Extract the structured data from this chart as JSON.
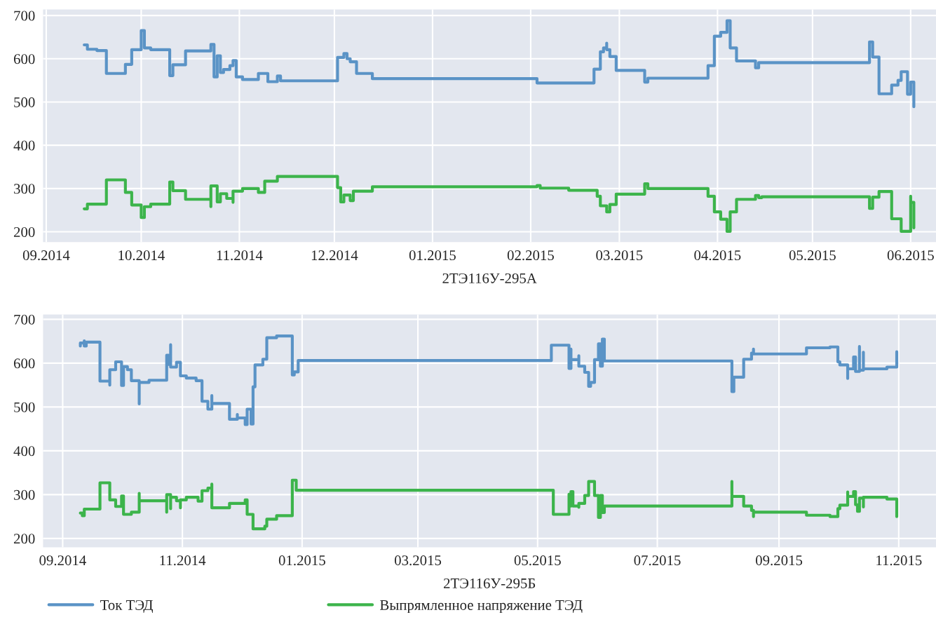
{
  "chart_data": [
    {
      "type": "step",
      "xlabel": "2ТЭ116У-295А",
      "grid": true,
      "legend": false,
      "xlim": [
        "2014-08-31",
        "2015-06-09"
      ],
      "ylim": [
        176,
        714
      ],
      "yticks": [
        200,
        300,
        400,
        500,
        600,
        700
      ],
      "xticks": [
        {
          "value": "2014-09-01",
          "label": "09.2014"
        },
        {
          "value": "2014-10-01",
          "label": "10.2014"
        },
        {
          "value": "2014-11-01",
          "label": "11.2014"
        },
        {
          "value": "2014-12-01",
          "label": "12.2014"
        },
        {
          "value": "2015-01-01",
          "label": "01.2015"
        },
        {
          "value": "2015-02-01",
          "label": "02.2015"
        },
        {
          "value": "2015-03-01",
          "label": "03.2015"
        },
        {
          "value": "2015-04-01",
          "label": "04.2015"
        },
        {
          "value": "2015-05-01",
          "label": "05.2015"
        },
        {
          "value": "2015-06-01",
          "label": "06.2015"
        }
      ],
      "series": [
        {
          "color": "#5a93c6",
          "x": [
            "2014-09-13",
            "2014-09-14",
            "2014-09-17",
            "2014-09-20",
            "2014-09-26",
            "2014-09-28",
            "2014-10-01",
            "2014-10-02",
            "2014-10-04",
            "2014-10-10",
            "2014-10-11",
            "2014-10-15",
            "2014-10-23",
            "2014-10-24",
            "2014-10-25",
            "2014-10-26",
            "2014-10-27",
            "2014-10-29",
            "2014-10-30",
            "2014-10-31",
            "2014-11-02",
            "2014-11-07",
            "2014-11-10",
            "2014-11-13",
            "2014-11-14",
            "2014-12-02",
            "2014-12-04",
            "2014-12-05",
            "2014-12-06",
            "2014-12-08",
            "2014-12-13",
            "2015-02-03",
            "2015-02-21",
            "2015-02-23",
            "2015-02-24",
            "2015-02-25",
            "2015-02-25",
            "2015-02-26",
            "2015-02-28",
            "2015-03-09",
            "2015-03-10",
            "2015-03-29",
            "2015-03-31",
            "2015-04-02",
            "2015-04-04",
            "2015-04-05",
            "2015-04-07",
            "2015-04-13",
            "2015-04-14",
            "2015-05-19",
            "2015-05-20",
            "2015-05-22",
            "2015-05-26",
            "2015-05-28",
            "2015-05-29",
            "2015-05-31",
            "2015-06-01",
            "2015-06-02"
          ],
          "values": [
            632,
            622,
            619,
            566,
            587,
            621,
            665,
            625,
            621,
            561,
            586,
            618,
            633,
            558,
            607,
            568,
            575,
            584,
            596,
            558,
            552,
            566,
            547,
            560,
            549,
            603,
            612,
            600,
            593,
            566,
            554,
            544,
            576,
            616,
            625,
            636,
            621,
            605,
            573,
            546,
            555,
            584,
            652,
            661,
            688,
            625,
            595,
            579,
            591,
            639,
            604,
            519,
            539,
            550,
            570,
            518,
            546,
            489
          ]
        },
        {
          "color": "#3cb44b",
          "x": [
            "2014-09-13",
            "2014-09-14",
            "2014-09-20",
            "2014-09-26",
            "2014-09-28",
            "2014-10-01",
            "2014-10-02",
            "2014-10-04",
            "2014-10-10",
            "2014-10-11",
            "2014-10-15",
            "2014-10-23",
            "2014-10-23",
            "2014-10-25",
            "2014-10-26",
            "2014-10-28",
            "2014-10-30",
            "2014-10-30",
            "2014-11-02",
            "2014-11-07",
            "2014-11-09",
            "2014-11-13",
            "2014-12-02",
            "2014-12-03",
            "2014-12-04",
            "2014-12-06",
            "2014-12-07",
            "2014-12-13",
            "2015-02-03",
            "2015-02-04",
            "2015-02-13",
            "2015-02-22",
            "2015-02-23",
            "2015-02-25",
            "2015-02-26",
            "2015-02-28",
            "2015-03-09",
            "2015-03-10",
            "2015-03-29",
            "2015-03-31",
            "2015-04-02",
            "2015-04-04",
            "2015-04-05",
            "2015-04-07",
            "2015-04-13",
            "2015-04-14",
            "2015-04-15",
            "2015-05-19",
            "2015-05-20",
            "2015-05-22",
            "2015-05-26",
            "2015-05-29",
            "2015-06-01",
            "2015-06-01",
            "2015-06-02"
          ],
          "values": [
            253,
            264,
            320,
            291,
            262,
            233,
            258,
            264,
            315,
            295,
            275,
            258,
            306,
            269,
            288,
            277,
            268,
            294,
            300,
            291,
            317,
            328,
            302,
            269,
            285,
            272,
            294,
            304,
            307,
            301,
            296,
            282,
            260,
            246,
            263,
            287,
            311,
            300,
            282,
            246,
            229,
            201,
            246,
            275,
            284,
            279,
            281,
            254,
            280,
            293,
            230,
            201,
            282,
            268,
            209
          ]
        }
      ]
    },
    {
      "type": "step",
      "xlabel": "2ТЭ116У-295Б",
      "grid": true,
      "legend": "bottom",
      "xlim": [
        "2014-08-22",
        "2015-11-20"
      ],
      "ylim": [
        180,
        711
      ],
      "yticks": [
        200,
        300,
        400,
        500,
        600,
        700
      ],
      "xticks": [
        {
          "value": "2014-09-01",
          "label": "09.2014"
        },
        {
          "value": "2014-11-01",
          "label": "11.2014"
        },
        {
          "value": "2015-01-01",
          "label": "01.2015"
        },
        {
          "value": "2015-03-01",
          "label": "03.2015"
        },
        {
          "value": "2015-05-01",
          "label": "05.2015"
        },
        {
          "value": "2015-07-01",
          "label": "07.2015"
        },
        {
          "value": "2015-09-01",
          "label": "09.2015"
        },
        {
          "value": "2015-11-01",
          "label": "11.2015"
        }
      ],
      "series": [
        {
          "name": "Ток ТЭД",
          "color": "#5a93c6",
          "x": [
            "2014-09-10",
            "2014-09-10",
            "2014-09-12",
            "2014-09-12",
            "2014-09-13",
            "2014-09-20",
            "2014-09-25",
            "2014-09-25",
            "2014-09-28",
            "2014-10-01",
            "2014-10-02",
            "2014-10-04",
            "2014-10-06",
            "2014-10-10",
            "2014-10-10",
            "2014-10-15",
            "2014-10-24",
            "2014-10-25",
            "2014-10-26",
            "2014-10-26",
            "2014-10-29",
            "2014-10-31",
            "2014-11-03",
            "2014-11-08",
            "2014-11-11",
            "2014-11-14",
            "2014-11-16",
            "2014-11-16",
            "2014-11-25",
            "2014-11-29",
            "2014-11-29",
            "2014-12-03",
            "2014-12-04",
            "2014-12-06",
            "2014-12-07",
            "2014-12-08",
            "2014-12-12",
            "2014-12-14",
            "2014-12-19",
            "2014-12-27",
            "2014-12-27",
            "2014-12-28",
            "2014-12-30",
            "2015-05-08",
            "2015-05-17",
            "2015-05-18",
            "2015-05-18",
            "2015-05-22",
            "2015-05-22",
            "2015-05-25",
            "2015-05-27",
            "2015-05-28",
            "2015-05-30",
            "2015-06-01",
            "2015-06-02",
            "2015-06-03",
            "2015-06-04",
            "2015-06-04",
            "2015-08-08",
            "2015-08-09",
            "2015-08-14",
            "2015-08-18",
            "2015-08-19",
            "2015-08-19",
            "2015-09-15",
            "2015-09-27",
            "2015-10-01",
            "2015-10-02",
            "2015-10-06",
            "2015-10-06",
            "2015-10-09",
            "2015-10-10",
            "2015-10-12",
            "2015-10-12",
            "2015-10-14",
            "2015-10-14",
            "2015-10-26",
            "2015-10-31"
          ],
          "values": [
            639,
            646,
            651,
            639,
            648,
            559,
            550,
            585,
            603,
            549,
            592,
            585,
            560,
            507,
            556,
            561,
            618,
            597,
            642,
            591,
            602,
            571,
            566,
            560,
            513,
            495,
            526,
            508,
            472,
            483,
            475,
            460,
            495,
            461,
            546,
            596,
            609,
            658,
            662,
            639,
            573,
            580,
            606,
            641,
            588,
            632,
            608,
            617,
            593,
            579,
            547,
            556,
            608,
            644,
            593,
            655,
            655,
            605,
            535,
            568,
            609,
            623,
            632,
            621,
            635,
            637,
            603,
            596,
            565,
            587,
            614,
            581,
            638,
            584,
            625,
            587,
            591,
            626
          ]
        },
        {
          "name": "Выпрямленное напряжение ТЭД",
          "color": "#3cb44b",
          "x": [
            "2014-09-10",
            "2014-09-11",
            "2014-09-12",
            "2014-09-20",
            "2014-09-25",
            "2014-09-28",
            "2014-10-01",
            "2014-10-02",
            "2014-10-06",
            "2014-10-10",
            "2014-10-10",
            "2014-10-24",
            "2014-10-24",
            "2014-10-26",
            "2014-10-26",
            "2014-10-29",
            "2014-10-31",
            "2014-10-31",
            "2014-11-03",
            "2014-11-09",
            "2014-11-11",
            "2014-11-14",
            "2014-11-16",
            "2014-11-16",
            "2014-11-25",
            "2014-12-03",
            "2014-12-04",
            "2014-12-07",
            "2014-12-13",
            "2014-12-14",
            "2014-12-19",
            "2014-12-27",
            "2014-12-29",
            "2015-05-09",
            "2015-05-17",
            "2015-05-17",
            "2015-05-18",
            "2015-05-18",
            "2015-05-19",
            "2015-05-22",
            "2015-05-22",
            "2015-05-25",
            "2015-05-27",
            "2015-05-30",
            "2015-06-01",
            "2015-06-02",
            "2015-06-03",
            "2015-06-04",
            "2015-08-08",
            "2015-08-08",
            "2015-08-14",
            "2015-08-18",
            "2015-08-19",
            "2015-08-19",
            "2015-09-15",
            "2015-09-27",
            "2015-10-01",
            "2015-10-02",
            "2015-10-06",
            "2015-10-06",
            "2015-10-09",
            "2015-10-10",
            "2015-10-11",
            "2015-10-12",
            "2015-10-14",
            "2015-10-14",
            "2015-10-26",
            "2015-10-31"
          ],
          "values": [
            258,
            252,
            267,
            327,
            288,
            273,
            297,
            255,
            260,
            303,
            286,
            260,
            300,
            268,
            294,
            286,
            270,
            288,
            294,
            285,
            309,
            315,
            324,
            270,
            280,
            288,
            255,
            222,
            228,
            244,
            252,
            333,
            310,
            255,
            283,
            301,
            274,
            307,
            274,
            271,
            280,
            298,
            330,
            298,
            248,
            298,
            259,
            274,
            330,
            296,
            274,
            264,
            250,
            260,
            253,
            250,
            268,
            276,
            306,
            296,
            307,
            277,
            262,
            292,
            272,
            294,
            290,
            250
          ]
        }
      ]
    }
  ]
}
